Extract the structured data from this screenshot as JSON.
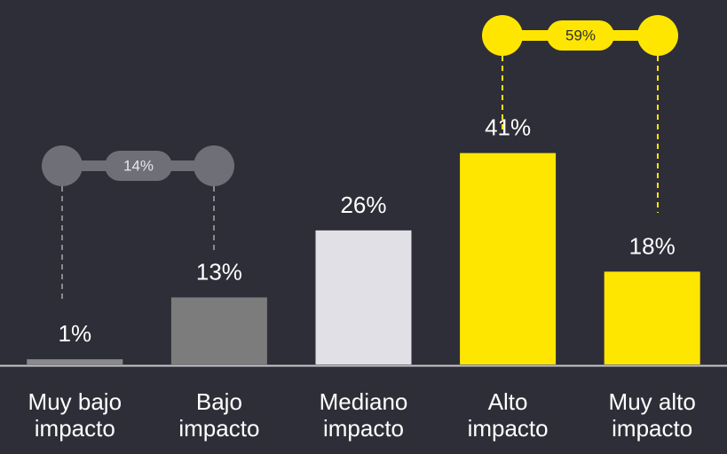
{
  "chart_data": {
    "type": "bar",
    "categories": [
      "Muy bajo impacto",
      "Bajo impacto",
      "Mediano impacto",
      "Alto impacto",
      "Muy alto impacto"
    ],
    "values": [
      1,
      13,
      26,
      41,
      18
    ],
    "value_labels": [
      "1%",
      "13%",
      "26%",
      "41%",
      "18%"
    ],
    "colors": [
      "#8a8a8e",
      "#7c7c7c",
      "#e1e0e6",
      "#ffe600",
      "#ffe600"
    ],
    "ylim": [
      0,
      70
    ],
    "annotations": [
      {
        "text": "14%"
      },
      {
        "text": "59%"
      }
    ]
  }
}
